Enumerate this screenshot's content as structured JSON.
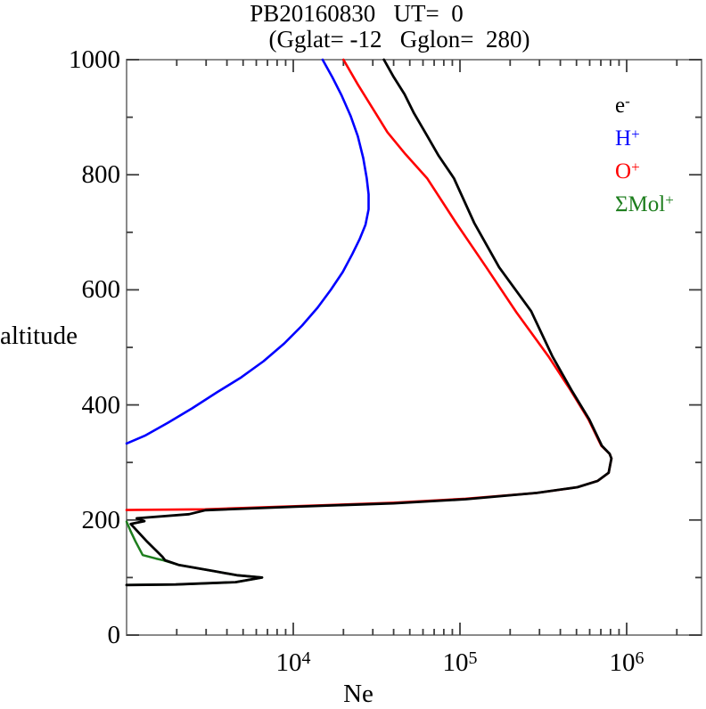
{
  "title": "PB20160830   UT=  0",
  "subtitle": "(Gglat= -12   Gglon=  280)",
  "axes": {
    "y_label": "altitude",
    "x_label": "Ne",
    "y_ticks_major": [
      0,
      200,
      400,
      600,
      800,
      1000
    ],
    "y_ticks_minor": [
      100,
      300,
      500,
      700,
      900
    ],
    "x_major_exponents": [
      4,
      5,
      6
    ],
    "x_labeled_exponents": [
      4,
      5,
      6
    ],
    "x_tick_base": "10"
  },
  "colors": {
    "frame": "#8a8a8a",
    "tick": "#3c3c3c",
    "electron": "#000000",
    "h_plus": "#0000ff",
    "o_plus": "#ff0000",
    "mol_plus": "#1e7e1e"
  },
  "legend": [
    {
      "label": "e",
      "sup": "-",
      "series": "electron"
    },
    {
      "label": "H",
      "sup": "+",
      "series": "h_plus"
    },
    {
      "label": "O",
      "sup": "+",
      "series": "o_plus"
    },
    {
      "label": "ΣMol",
      "sup": "+",
      "series": "mol_plus"
    }
  ],
  "chart_data": {
    "type": "line",
    "title": "PB20160830   UT=  0",
    "subtitle": "(Gglat= -12   Gglon=  280)",
    "xlabel": "Ne",
    "ylabel": "altitude",
    "x_scale": "log",
    "x_range": [
      1000,
      2800000
    ],
    "y_range": [
      0,
      1000
    ],
    "grid": false,
    "legend_position": "top-right-outside",
    "series": [
      {
        "name": "mol_plus",
        "legend": "ΣMol+",
        "width": 2.5,
        "points": [
          [
            1000,
            197
          ],
          [
            1060,
            180
          ],
          [
            1130,
            163
          ],
          [
            1250,
            139
          ],
          [
            1500,
            133
          ],
          [
            1660,
            130
          ],
          [
            2050,
            122
          ],
          [
            3360,
            111
          ],
          [
            4580,
            104
          ],
          [
            6500,
            100
          ],
          [
            4500,
            92
          ],
          [
            1970,
            88
          ],
          [
            1000,
            87
          ]
        ]
      },
      {
        "name": "h_plus",
        "legend": "H+",
        "width": 2.6,
        "points": [
          [
            15000,
            1000
          ],
          [
            17200,
            969
          ],
          [
            19500,
            938
          ],
          [
            22100,
            902
          ],
          [
            24400,
            867
          ],
          [
            26300,
            829
          ],
          [
            27600,
            794
          ],
          [
            28300,
            766
          ],
          [
            28300,
            740
          ],
          [
            27100,
            713
          ],
          [
            25000,
            688
          ],
          [
            22600,
            662
          ],
          [
            19800,
            631
          ],
          [
            16800,
            600
          ],
          [
            14000,
            569
          ],
          [
            11300,
            538
          ],
          [
            8840,
            507
          ],
          [
            6640,
            476
          ],
          [
            4880,
            448
          ],
          [
            3490,
            422
          ],
          [
            2470,
            394
          ],
          [
            1770,
            369
          ],
          [
            1300,
            347
          ],
          [
            1000,
            333
          ]
        ]
      },
      {
        "name": "o_plus",
        "legend": "O+",
        "width": 2.6,
        "points": [
          [
            20000,
            1000
          ],
          [
            24400,
            957
          ],
          [
            30000,
            915
          ],
          [
            36700,
            874
          ],
          [
            47000,
            836
          ],
          [
            63500,
            794
          ],
          [
            95000,
            716
          ],
          [
            144000,
            639
          ],
          [
            218000,
            561
          ],
          [
            340000,
            484
          ],
          [
            460000,
            426
          ],
          [
            590000,
            375
          ],
          [
            705000,
            329
          ],
          [
            790000,
            315
          ],
          [
            810000,
            307
          ],
          [
            780000,
            282
          ],
          [
            670000,
            268
          ],
          [
            506000,
            257
          ],
          [
            289000,
            247
          ],
          [
            108000,
            237
          ],
          [
            40000,
            230
          ],
          [
            10300,
            224
          ],
          [
            2970,
            218.5
          ],
          [
            1400,
            217.8
          ],
          [
            1000,
            217.3
          ]
        ]
      },
      {
        "name": "electron",
        "legend": "e-",
        "width": 2.8,
        "points": [
          [
            35000,
            1000
          ],
          [
            40000,
            970
          ],
          [
            46500,
            940
          ],
          [
            53000,
            907
          ],
          [
            63500,
            868
          ],
          [
            74500,
            833
          ],
          [
            92000,
            794
          ],
          [
            122000,
            716
          ],
          [
            172000,
            639
          ],
          [
            267000,
            563
          ],
          [
            359000,
            484
          ],
          [
            466000,
            426
          ],
          [
            596000,
            375
          ],
          [
            710000,
            329
          ],
          [
            790000,
            315
          ],
          [
            810000,
            307
          ],
          [
            780000,
            282
          ],
          [
            670000,
            268
          ],
          [
            506000,
            257
          ],
          [
            289000,
            247
          ],
          [
            108000,
            236
          ],
          [
            40000,
            229
          ],
          [
            10300,
            223
          ],
          [
            2970,
            217
          ],
          [
            2370,
            210
          ],
          [
            1150,
            203
          ],
          [
            1280,
            198
          ],
          [
            1060,
            193
          ],
          [
            1330,
            162
          ],
          [
            1640,
            136
          ],
          [
            1700,
            130
          ],
          [
            2050,
            122
          ],
          [
            3360,
            111
          ],
          [
            4580,
            104
          ],
          [
            6500,
            100
          ],
          [
            4500,
            92
          ],
          [
            1970,
            88
          ],
          [
            1000,
            87
          ]
        ]
      }
    ]
  }
}
